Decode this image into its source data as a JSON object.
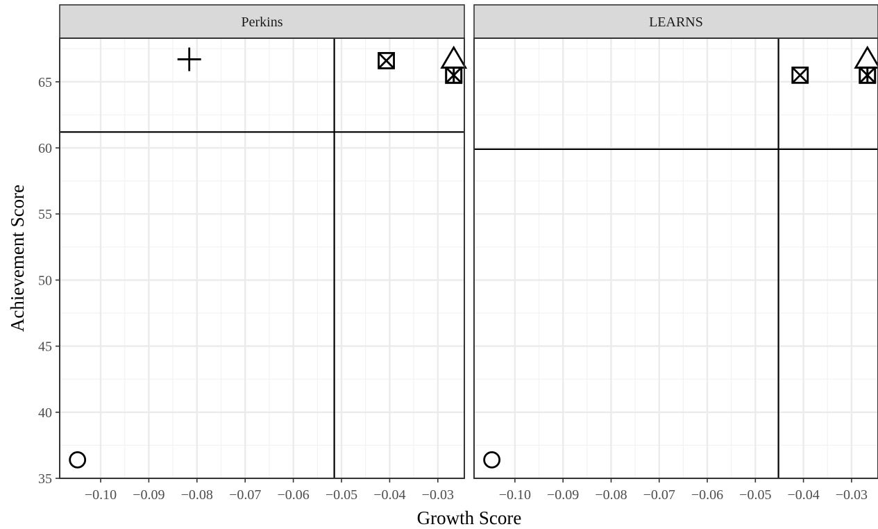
{
  "chart_data": [
    {
      "type": "scatter",
      "panel_label": "Perkins",
      "xlabel": "Growth Score",
      "ylabel": "Achievement Score",
      "xlim": [
        -0.1085,
        -0.0245
      ],
      "ylim": [
        35,
        68.3
      ],
      "x_ticks": [
        -0.1,
        -0.09,
        -0.08,
        -0.07,
        -0.06,
        -0.05,
        -0.04,
        -0.03
      ],
      "x_tick_labels": [
        "−0.10",
        "−0.09",
        "−0.08",
        "−0.07",
        "−0.06",
        "−0.05",
        "−0.04",
        "−0.03"
      ],
      "y_ticks": [
        35,
        40,
        45,
        50,
        55,
        60,
        65
      ],
      "y_tick_labels": [
        "35",
        "40",
        "45",
        "50",
        "55",
        "60",
        "65"
      ],
      "grid": true,
      "reference_lines": {
        "x": -0.0515,
        "y": 61.2
      },
      "points": [
        {
          "x": -0.1048,
          "y": 36.4,
          "shape": "circle"
        },
        {
          "x": -0.0816,
          "y": 66.7,
          "shape": "plus"
        },
        {
          "x": -0.0407,
          "y": 66.6,
          "shape": "square-cross"
        },
        {
          "x": -0.0267,
          "y": 65.5,
          "shape": "square-asterisk"
        },
        {
          "x": -0.0267,
          "y": 65.5,
          "shape": "square-asterisk"
        },
        {
          "x": -0.0267,
          "y": 66.7,
          "shape": "triangle"
        }
      ]
    },
    {
      "type": "scatter",
      "panel_label": "LEARNS",
      "xlabel": "Growth Score",
      "ylabel": "Achievement Score",
      "xlim": [
        -0.1085,
        -0.0245
      ],
      "ylim": [
        35,
        68.3
      ],
      "x_ticks": [
        -0.1,
        -0.09,
        -0.08,
        -0.07,
        -0.06,
        -0.05,
        -0.04,
        -0.03
      ],
      "x_tick_labels": [
        "−0.10",
        "−0.09",
        "−0.08",
        "−0.07",
        "−0.06",
        "−0.05",
        "−0.04",
        "−0.03"
      ],
      "y_ticks": [
        35,
        40,
        45,
        50,
        55,
        60,
        65
      ],
      "y_tick_labels": [
        "35",
        "40",
        "45",
        "50",
        "55",
        "60",
        "65"
      ],
      "grid": true,
      "reference_lines": {
        "x": -0.0452,
        "y": 59.9
      },
      "points": [
        {
          "x": -0.1048,
          "y": 36.4,
          "shape": "circle"
        },
        {
          "x": -0.0407,
          "y": 65.5,
          "shape": "square-cross"
        },
        {
          "x": -0.0267,
          "y": 65.5,
          "shape": "square-asterisk"
        },
        {
          "x": -0.0267,
          "y": 65.5,
          "shape": "square-asterisk"
        },
        {
          "x": -0.0267,
          "y": 66.7,
          "shape": "triangle"
        }
      ]
    }
  ]
}
